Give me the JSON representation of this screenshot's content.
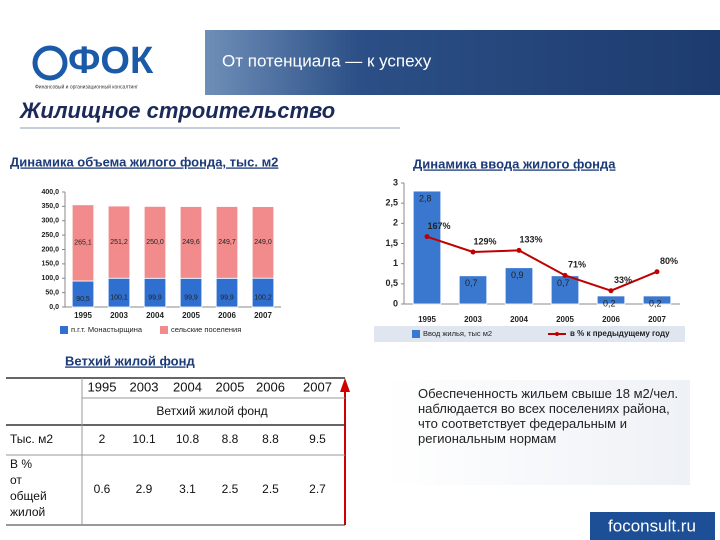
{
  "header": {
    "logo": "ФОК",
    "logo_subtitle": "Финансовый и организационный консалтинг",
    "tagline": "От потенциала — к успеху"
  },
  "title": "Жилищное строительство",
  "chart_data": [
    {
      "type": "bar",
      "stacked": true,
      "title": "Динамика объема жилого фонда, тыс. м2",
      "categories": [
        "1995",
        "2003",
        "2004",
        "2005",
        "2006",
        "2007"
      ],
      "series": [
        {
          "name": "п.г.т. Монастырщина",
          "color": "#2f6fd0",
          "values": [
            90.5,
            100.1,
            99.9,
            99.9,
            99.9,
            100.2
          ],
          "value_labels": [
            "90,5",
            "100,1",
            "99,9",
            "99,9",
            "99,9",
            "100,2"
          ]
        },
        {
          "name": "сельские поселения",
          "color": "#f28c8c",
          "values": [
            265.1,
            251.2,
            250.0,
            249.6,
            249.7,
            249.0
          ],
          "value_labels": [
            "265,1",
            "251,2",
            "250,0",
            "249,6",
            "249,7",
            "249,0"
          ]
        }
      ],
      "ylim": [
        0,
        400
      ],
      "yticks": [
        {
          "value": 0,
          "label": "0,0"
        },
        {
          "value": 50,
          "label": "50,0"
        },
        {
          "value": 100,
          "label": "100,0"
        },
        {
          "value": 150,
          "label": "150,0"
        },
        {
          "value": 200,
          "label": "200,0"
        },
        {
          "value": 250,
          "label": "250,0"
        },
        {
          "value": 300,
          "label": "300,0"
        },
        {
          "value": 350,
          "label": "350,0"
        },
        {
          "value": 400,
          "label": "400,0"
        }
      ],
      "legend": "bottom"
    },
    {
      "type": "bar",
      "title": "Динамика ввода жилого фонда",
      "categories": [
        "1995",
        "2003",
        "2004",
        "2005",
        "2006",
        "2007"
      ],
      "series": [
        {
          "name": "Ввод жилья, тыс м2",
          "color": "#3a78d0",
          "values": [
            2.8,
            0.7,
            0.9,
            0.7,
            0.2,
            0.2
          ],
          "value_labels": [
            "2,8",
            "0,7",
            "0,9",
            "0,7",
            "0,2",
            "0,2"
          ]
        },
        {
          "name": "в % к предыдущему году",
          "type": "line",
          "axis": "y2",
          "color": "#c00000",
          "values": [
            167,
            129,
            133,
            71,
            33,
            80
          ],
          "value_labels": [
            "167%",
            "129%",
            "133%",
            "71%",
            "33%",
            "80%"
          ]
        }
      ],
      "ylim": [
        0,
        3
      ],
      "yticks": [
        0,
        {
          "value": 0.5,
          "label": "0,5"
        },
        1,
        {
          "value": 1.5,
          "label": "1,5"
        },
        2,
        {
          "value": 2.5,
          "label": "2,5"
        },
        3
      ],
      "y2lim": [
        0,
        300
      ],
      "legend": "bottom"
    }
  ],
  "table": {
    "title": "Ветхий жилой фонд",
    "columns": [
      "1995",
      "2003",
      "2004",
      "2005",
      "2006",
      "2007"
    ],
    "subheader": "Ветхий жилой фонд",
    "rows": [
      {
        "label": "Тыс. м2",
        "values": [
          2,
          10.1,
          10.8,
          8.8,
          8.8,
          9.5
        ]
      },
      {
        "label": "В % от общей жилой площади",
        "values": [
          0.6,
          2.9,
          3.1,
          2.5,
          2.5,
          2.7
        ]
      }
    ]
  },
  "note": "Обеспеченность жильем свыше 18 м2/чел. наблюдается во всех поселениях района, что соответствует федеральным и региональным нормам",
  "footer": "foconsult.ru"
}
